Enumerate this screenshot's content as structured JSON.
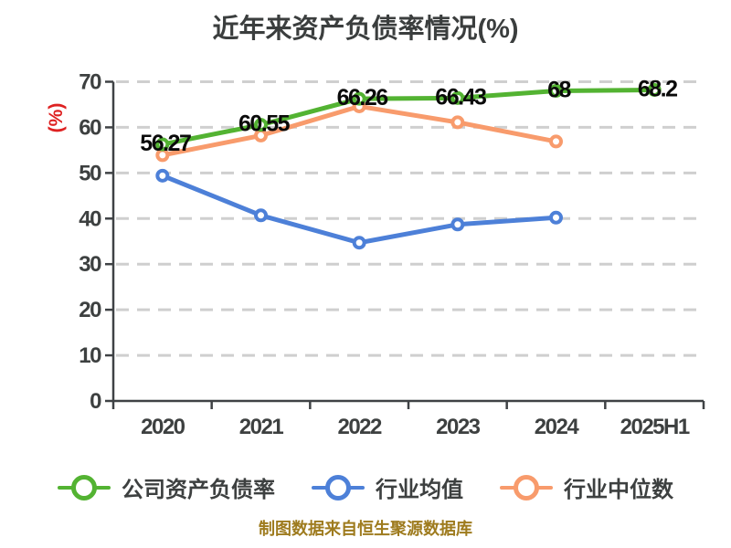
{
  "title": "近年来资产负债率情况(%)",
  "y_axis_label": "(%)",
  "caption": "制图数据来自恒生聚源数据库",
  "colors": {
    "title_text": "#3b3e3e",
    "axis": "#3f4245",
    "tick_text": "#3d4040",
    "grid": "#cfcfcf",
    "data_label_text": "#0a0a0a",
    "y_axis_label_red": "#de2121",
    "caption_gold": "#9e7b1e",
    "series_green": "#53b332",
    "series_blue": "#4d80d8",
    "series_orange": "#f89b6c"
  },
  "chart_data": {
    "type": "line",
    "title": "近年来资产负债率情况(%)",
    "xlabel": "",
    "ylabel": "(%)",
    "categories": [
      "2020",
      "2021",
      "2022",
      "2023",
      "2024",
      "2025H1"
    ],
    "series": [
      {
        "key": "company-debt-ratio",
        "name": "公司资产负债率",
        "color": "#53b332",
        "values": [
          56.27,
          60.55,
          66.26,
          66.43,
          68,
          68.2
        ],
        "labels": [
          "56.27",
          "60.55",
          "66.26",
          "66.43",
          "68",
          "68.2"
        ]
      },
      {
        "key": "industry-average",
        "name": "行业均值",
        "color": "#4d80d8",
        "values": [
          49.4,
          40.7,
          34.7,
          38.7,
          40.2
        ]
      },
      {
        "key": "industry-median",
        "name": "行业中位数",
        "color": "#f89b6c",
        "values": [
          53.9,
          58.2,
          64.6,
          61.1,
          56.9
        ]
      }
    ],
    "ylim": [
      0,
      70
    ],
    "yticks": [
      0,
      10,
      20,
      30,
      40,
      50,
      60,
      70
    ],
    "grid": "horizontal-dashed",
    "legend_position": "bottom",
    "marker": "circle-white-fill"
  }
}
